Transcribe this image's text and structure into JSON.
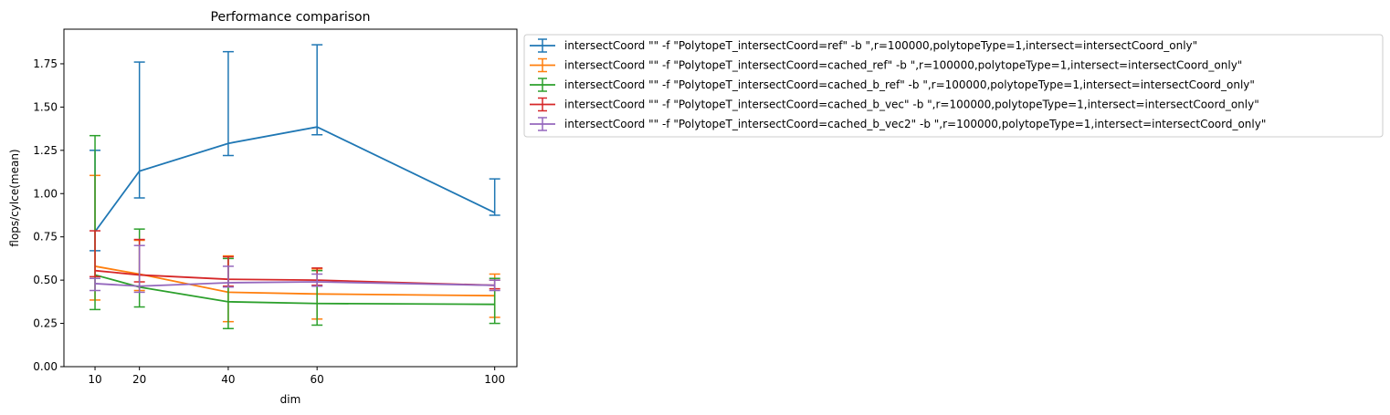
{
  "chart_data": {
    "type": "line",
    "title": "Performance comparison",
    "xlabel": "dim",
    "ylabel": "flops/cylce(mean)",
    "x": [
      10,
      20,
      40,
      60,
      100
    ],
    "x_ticks": [
      "10",
      "20",
      "40",
      "60",
      "100"
    ],
    "xlim": [
      3,
      105
    ],
    "ylim": [
      0,
      1.95
    ],
    "y_ticks": [
      "0.00",
      "0.25",
      "0.50",
      "0.75",
      "1.00",
      "1.25",
      "1.50",
      "1.75"
    ],
    "y_tick_values": [
      0,
      0.25,
      0.5,
      0.75,
      1.0,
      1.25,
      1.5,
      1.75
    ],
    "grid": false,
    "legend_position": "outside-upper-right",
    "series": [
      {
        "name": "intersectCoord \"\" -f \"PolytopeT_intersectCoord=ref\" -b \",r=100000,polytopeType=1,intersect=intersectCoord_only\"",
        "color": "#1f77b4",
        "values": [
          0.78,
          1.13,
          1.29,
          1.385,
          0.89
        ],
        "err_low": [
          0.67,
          0.975,
          1.22,
          1.34,
          0.875
        ],
        "err_high": [
          1.25,
          1.76,
          1.82,
          1.86,
          1.085
        ]
      },
      {
        "name": "intersectCoord \"\" -f \"PolytopeT_intersectCoord=cached_ref\" -b \",r=100000,polytopeType=1,intersect=intersectCoord_only\"",
        "color": "#ff7f0e",
        "values": [
          0.58,
          0.535,
          0.43,
          0.42,
          0.41
        ],
        "err_low": [
          0.385,
          0.44,
          0.26,
          0.275,
          0.285
        ],
        "err_high": [
          1.105,
          0.73,
          0.64,
          0.565,
          0.535
        ]
      },
      {
        "name": "intersectCoord \"\" -f \"PolytopeT_intersectCoord=cached_b_ref\" -b \",r=100000,polytopeType=1,intersect=intersectCoord_only\"",
        "color": "#2ca02c",
        "values": [
          0.53,
          0.46,
          0.375,
          0.365,
          0.36
        ],
        "err_low": [
          0.33,
          0.345,
          0.22,
          0.24,
          0.25
        ],
        "err_high": [
          1.335,
          0.795,
          0.625,
          0.555,
          0.51
        ]
      },
      {
        "name": "intersectCoord \"\" -f \"PolytopeT_intersectCoord=cached_b_vec\" -b \",r=100000,polytopeType=1,intersect=intersectCoord_only\"",
        "color": "#d62728",
        "values": [
          0.555,
          0.53,
          0.505,
          0.5,
          0.47
        ],
        "err_low": [
          0.52,
          0.49,
          0.465,
          0.47,
          0.45
        ],
        "err_high": [
          0.785,
          0.735,
          0.635,
          0.57,
          0.5
        ]
      },
      {
        "name": "intersectCoord \"\" -f \"PolytopeT_intersectCoord=cached_b_vec2\" -b \",r=100000,polytopeType=1,intersect=intersectCoord_only\"",
        "color": "#9467bd",
        "values": [
          0.48,
          0.465,
          0.485,
          0.49,
          0.47
        ],
        "err_low": [
          0.44,
          0.43,
          0.46,
          0.465,
          0.44
        ],
        "err_high": [
          0.51,
          0.7,
          0.58,
          0.535,
          0.5
        ]
      }
    ]
  }
}
